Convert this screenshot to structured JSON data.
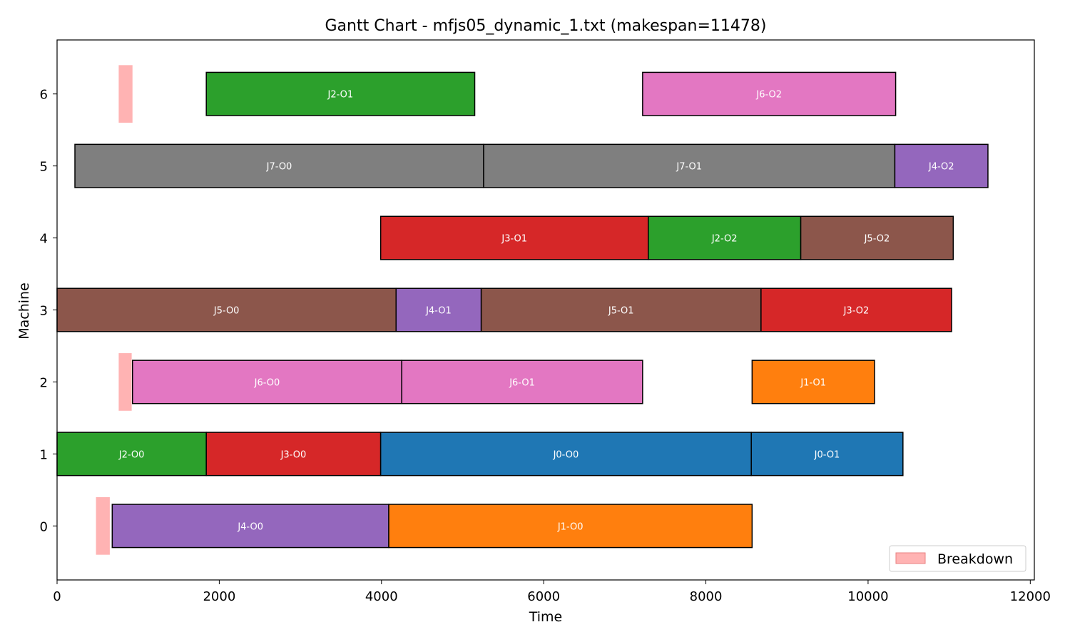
{
  "chart_data": {
    "type": "gantt",
    "title": "Gantt Chart - mfjs05_dynamic_1.txt (makespan=11478)",
    "xlabel": "Time",
    "ylabel": "Machine",
    "xlim": [
      0,
      12050
    ],
    "ylim": [
      -0.75,
      6.75
    ],
    "xticks": [
      0,
      2000,
      4000,
      6000,
      8000,
      10000,
      12000
    ],
    "yticks": [
      0,
      1,
      2,
      3,
      4,
      5,
      6
    ],
    "grid": false,
    "legend": {
      "position": "lower-right",
      "entries": [
        {
          "label": "Breakdown",
          "color": "#ffb3b3"
        }
      ]
    },
    "colors": {
      "J0": "#1f77b4",
      "J1": "#ff7f0e",
      "J2": "#2ca02c",
      "J3": "#d62728",
      "J4": "#9467bd",
      "J5": "#8c564b",
      "J6": "#e377c2",
      "J7": "#7f7f7f",
      "breakdown": "#ffb3b3"
    },
    "operations": [
      {
        "machine": 0,
        "job": "J4",
        "label": "J4-O0",
        "start": 680,
        "end": 4090
      },
      {
        "machine": 0,
        "job": "J1",
        "label": "J1-O0",
        "start": 4090,
        "end": 8570
      },
      {
        "machine": 1,
        "job": "J2",
        "label": "J2-O0",
        "start": 0,
        "end": 1840
      },
      {
        "machine": 1,
        "job": "J3",
        "label": "J3-O0",
        "start": 1840,
        "end": 3990
      },
      {
        "machine": 1,
        "job": "J0",
        "label": "J0-O0",
        "start": 3990,
        "end": 8560
      },
      {
        "machine": 1,
        "job": "J0",
        "label": "J0-O1",
        "start": 8560,
        "end": 10430
      },
      {
        "machine": 2,
        "job": "J6",
        "label": "J6-O0",
        "start": 930,
        "end": 4250
      },
      {
        "machine": 2,
        "job": "J6",
        "label": "J6-O1",
        "start": 4250,
        "end": 7220
      },
      {
        "machine": 2,
        "job": "J1",
        "label": "J1-O1",
        "start": 8570,
        "end": 10080
      },
      {
        "machine": 3,
        "job": "J5",
        "label": "J5-O0",
        "start": 0,
        "end": 4180
      },
      {
        "machine": 3,
        "job": "J4",
        "label": "J4-O1",
        "start": 4180,
        "end": 5230
      },
      {
        "machine": 3,
        "job": "J5",
        "label": "J5-O1",
        "start": 5230,
        "end": 8680
      },
      {
        "machine": 3,
        "job": "J3",
        "label": "J3-O2",
        "start": 8680,
        "end": 11030
      },
      {
        "machine": 4,
        "job": "J3",
        "label": "J3-O1",
        "start": 3990,
        "end": 7290
      },
      {
        "machine": 4,
        "job": "J2",
        "label": "J2-O2",
        "start": 7290,
        "end": 9170
      },
      {
        "machine": 4,
        "job": "J5",
        "label": "J5-O2",
        "start": 9170,
        "end": 11050
      },
      {
        "machine": 5,
        "job": "J7",
        "label": "J7-O0",
        "start": 220,
        "end": 5260
      },
      {
        "machine": 5,
        "job": "J7",
        "label": "J7-O1",
        "start": 5260,
        "end": 10330
      },
      {
        "machine": 5,
        "job": "J4",
        "label": "J4-O2",
        "start": 10330,
        "end": 11478
      },
      {
        "machine": 6,
        "job": "J2",
        "label": "J2-O1",
        "start": 1840,
        "end": 5150
      },
      {
        "machine": 6,
        "job": "J6",
        "label": "J6-O2",
        "start": 7220,
        "end": 10340
      }
    ],
    "breakdowns": [
      {
        "machine": 0,
        "start": 480,
        "end": 650
      },
      {
        "machine": 2,
        "start": 760,
        "end": 920
      },
      {
        "machine": 6,
        "start": 760,
        "end": 930
      }
    ]
  }
}
